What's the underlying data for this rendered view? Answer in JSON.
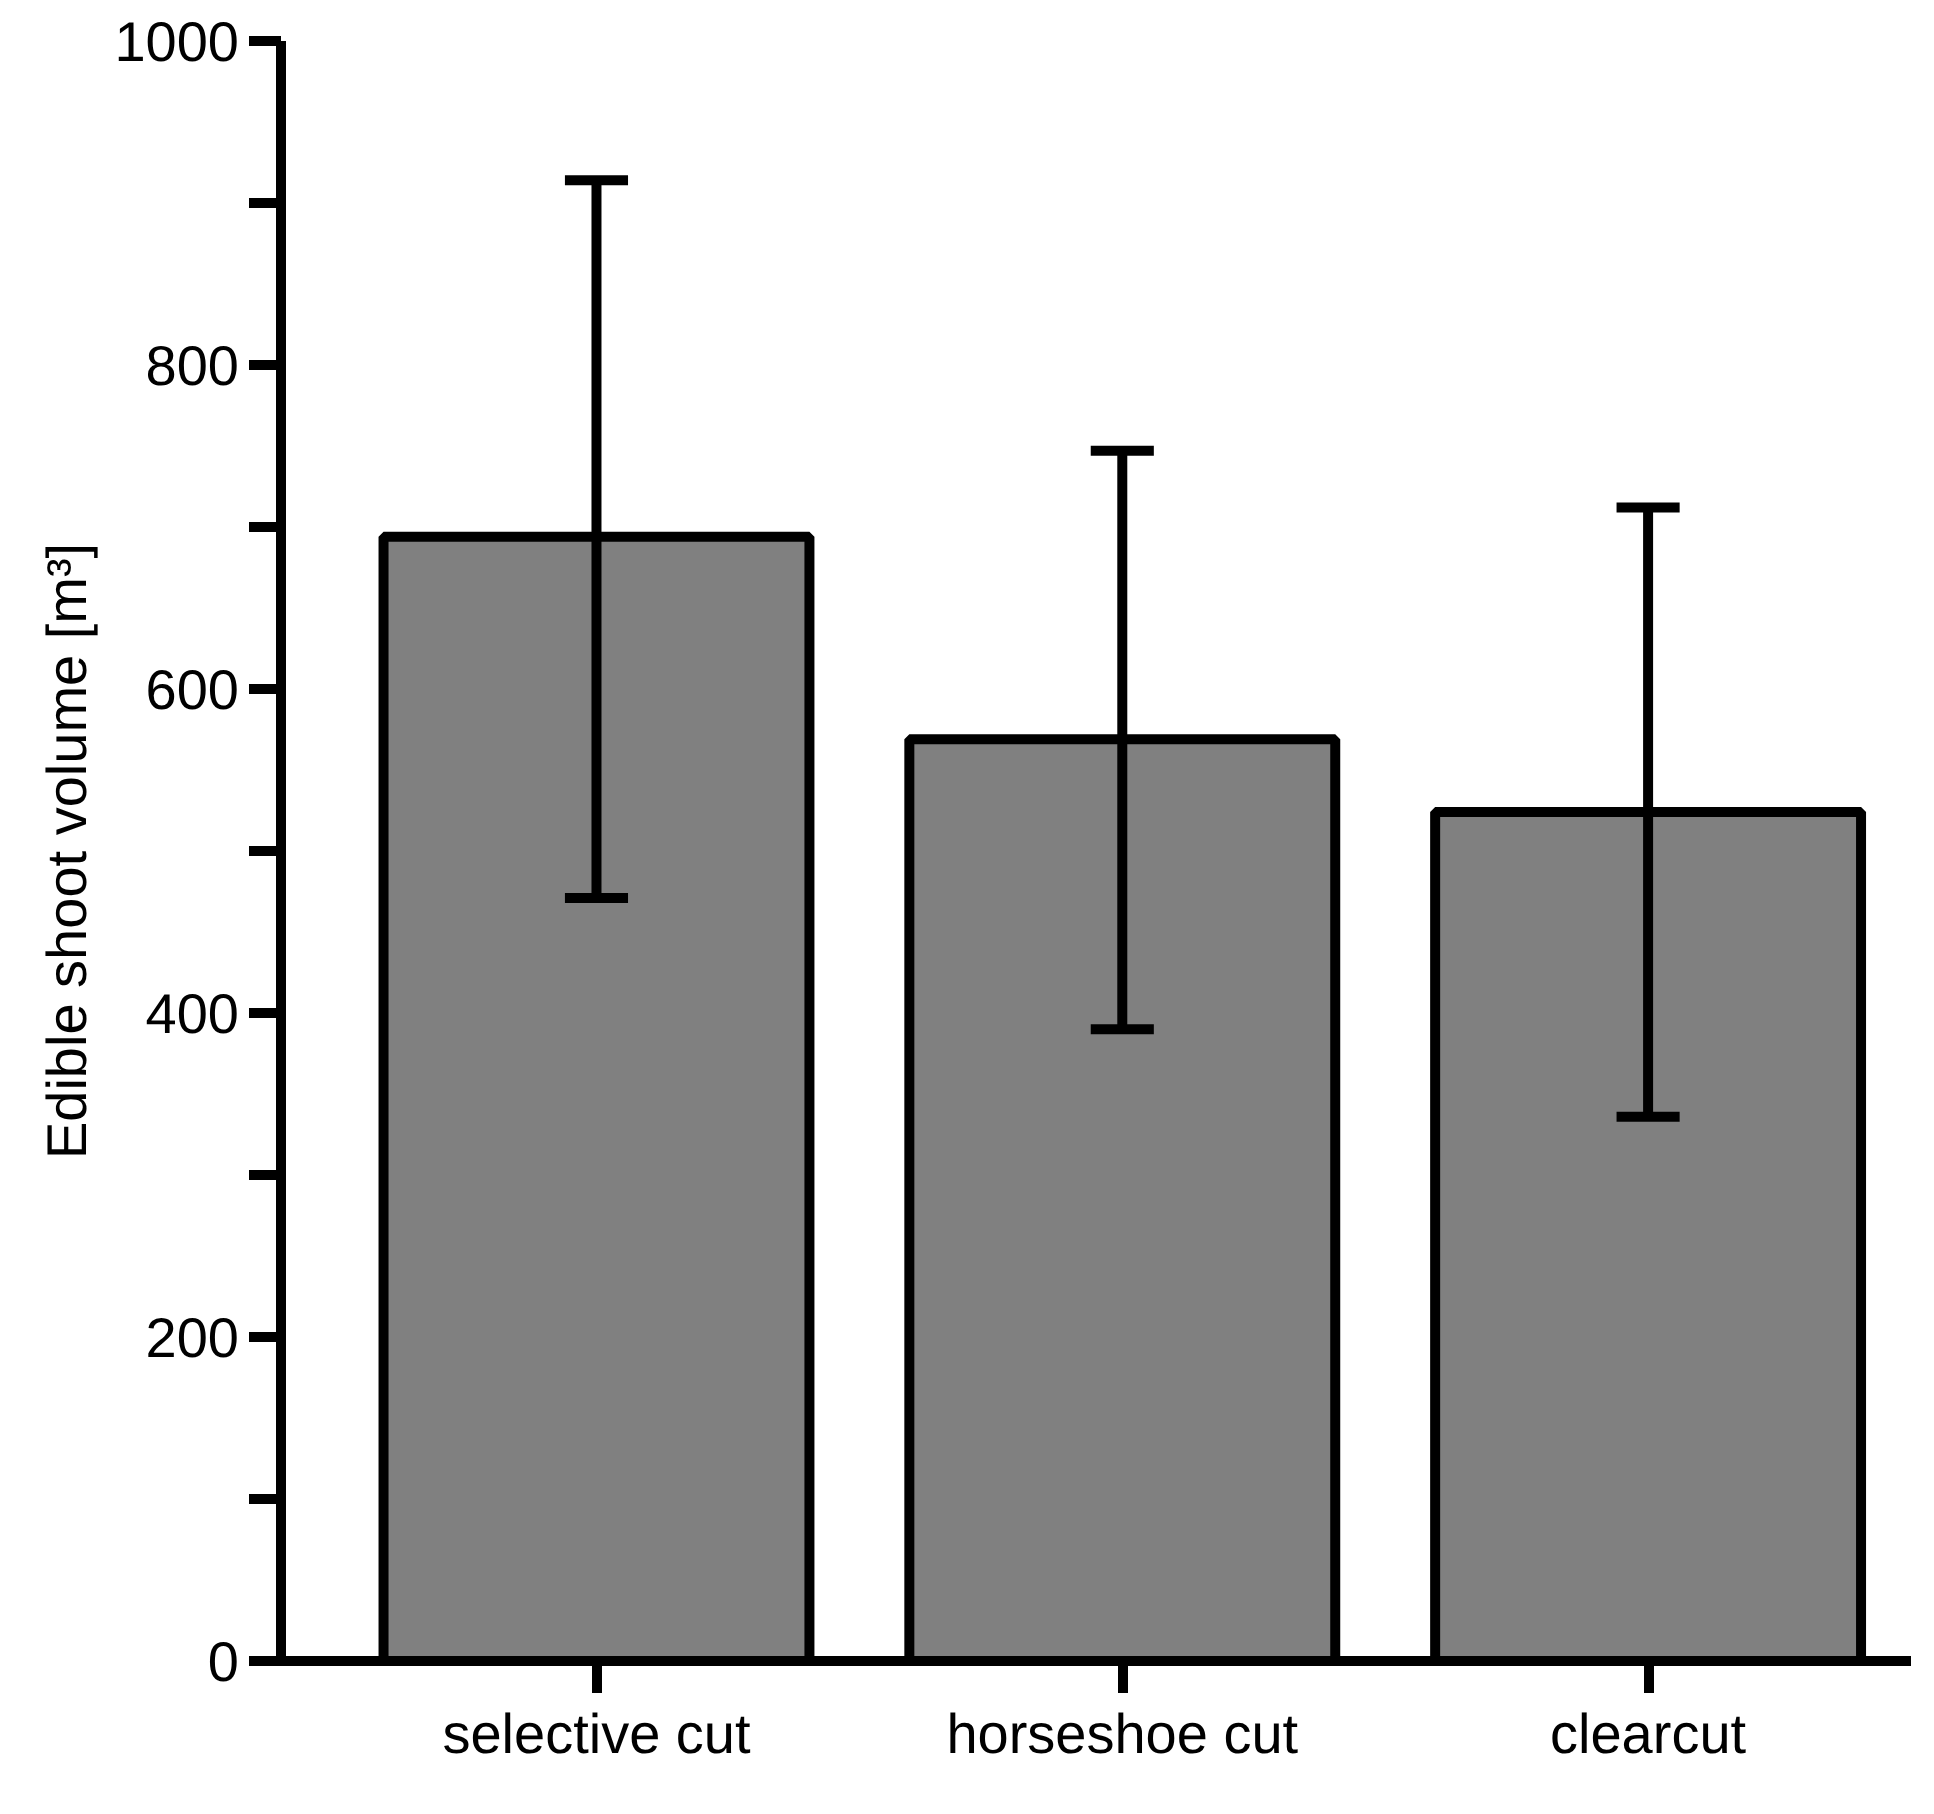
{
  "chart_data": {
    "type": "bar",
    "ylabel": "Edible shoot volume [m³]",
    "categories": [
      "selective cut",
      "horseshoe cut",
      "clearcut"
    ],
    "values": [
      694,
      569,
      524
    ],
    "errors": [
      [
        471,
        914
      ],
      [
        390,
        747
      ],
      [
        336,
        712
      ]
    ],
    "color": "#808080",
    "ylim": [
      0,
      1000
    ],
    "yticks": [
      0,
      {
        "value": 100,
        "label": null
      },
      200,
      {
        "value": 300,
        "label": null
      },
      400,
      {
        "value": 500,
        "label": null
      },
      600,
      {
        "value": 700,
        "label": null
      },
      800,
      {
        "value": 900,
        "label": null
      },
      1000
    ],
    "grid": false
  }
}
